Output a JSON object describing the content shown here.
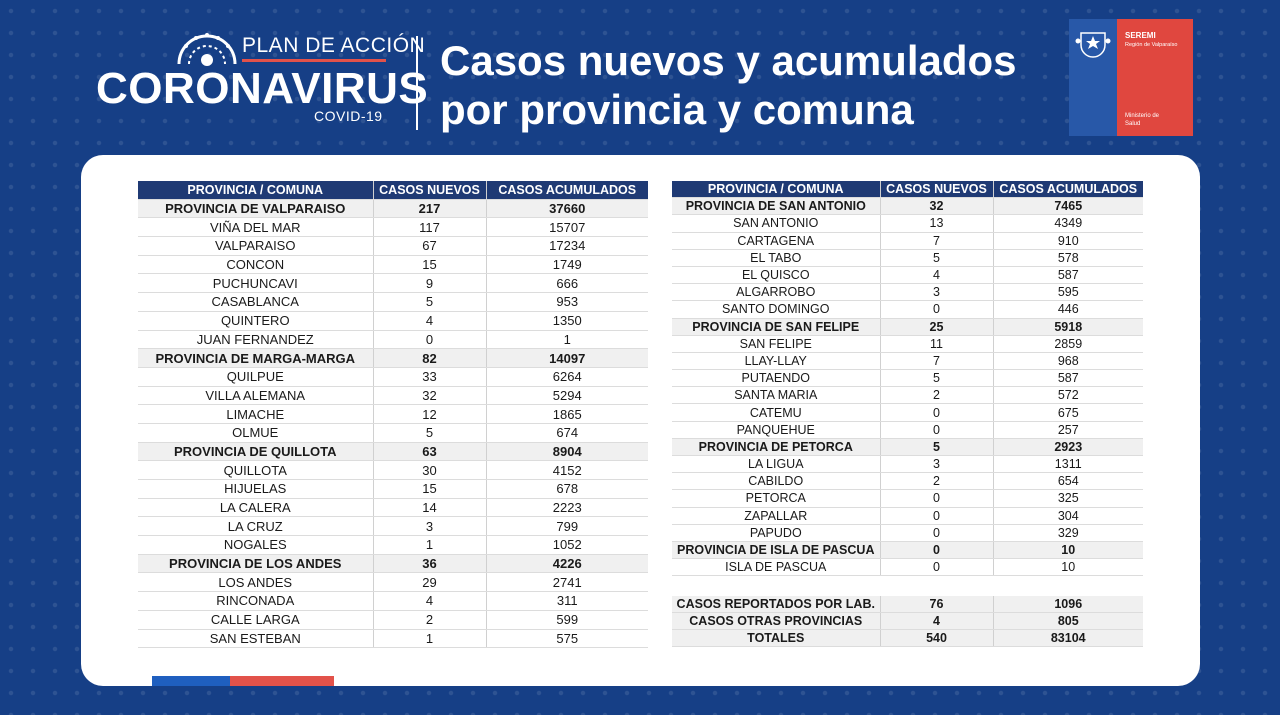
{
  "header": {
    "logo_line1": "PLAN DE ACCIÓN",
    "logo_line2": "CORONAVIRUS",
    "logo_line3": "COVID-19",
    "title_line1": "Casos nuevos y acumulados",
    "title_line2": "por provincia y comuna",
    "seremi_title": "SEREMI",
    "seremi_region": "Región de Valparaíso",
    "ministry_line1": "Ministerio de",
    "ministry_line2": "Salud"
  },
  "colors": {
    "background": "#163f86",
    "table_header": "#1f3a74",
    "accent_red": "#e2524a",
    "accent_blue": "#1f5fbf"
  },
  "columns": [
    "PROVINCIA / COMUNA",
    "CASOS NUEVOS",
    "CASOS ACUMULADOS"
  ],
  "left_table": [
    {
      "name": "PROVINCIA DE VALPARAISO",
      "new": "217",
      "total": "37660",
      "province": true
    },
    {
      "name": "VIÑA DEL MAR",
      "new": "117",
      "total": "15707"
    },
    {
      "name": "VALPARAISO",
      "new": "67",
      "total": "17234"
    },
    {
      "name": "CONCON",
      "new": "15",
      "total": "1749"
    },
    {
      "name": "PUCHUNCAVI",
      "new": "9",
      "total": "666"
    },
    {
      "name": "CASABLANCA",
      "new": "5",
      "total": "953"
    },
    {
      "name": "QUINTERO",
      "new": "4",
      "total": "1350"
    },
    {
      "name": "JUAN FERNANDEZ",
      "new": "0",
      "total": "1"
    },
    {
      "name": "PROVINCIA DE MARGA-MARGA",
      "new": "82",
      "total": "14097",
      "province": true
    },
    {
      "name": "QUILPUE",
      "new": "33",
      "total": "6264"
    },
    {
      "name": "VILLA ALEMANA",
      "new": "32",
      "total": "5294"
    },
    {
      "name": "LIMACHE",
      "new": "12",
      "total": "1865"
    },
    {
      "name": "OLMUE",
      "new": "5",
      "total": "674"
    },
    {
      "name": "PROVINCIA DE QUILLOTA",
      "new": "63",
      "total": "8904",
      "province": true
    },
    {
      "name": "QUILLOTA",
      "new": "30",
      "total": "4152"
    },
    {
      "name": "HIJUELAS",
      "new": "15",
      "total": "678"
    },
    {
      "name": "LA CALERA",
      "new": "14",
      "total": "2223"
    },
    {
      "name": "LA CRUZ",
      "new": "3",
      "total": "799"
    },
    {
      "name": "NOGALES",
      "new": "1",
      "total": "1052"
    },
    {
      "name": "PROVINCIA DE LOS ANDES",
      "new": "36",
      "total": "4226",
      "province": true
    },
    {
      "name": "LOS ANDES",
      "new": "29",
      "total": "2741"
    },
    {
      "name": "RINCONADA",
      "new": "4",
      "total": "311"
    },
    {
      "name": "CALLE LARGA",
      "new": "2",
      "total": "599"
    },
    {
      "name": "SAN ESTEBAN",
      "new": "1",
      "total": "575"
    }
  ],
  "right_table": [
    {
      "name": "PROVINCIA DE SAN ANTONIO",
      "new": "32",
      "total": "7465",
      "province": true
    },
    {
      "name": "SAN ANTONIO",
      "new": "13",
      "total": "4349"
    },
    {
      "name": "CARTAGENA",
      "new": "7",
      "total": "910"
    },
    {
      "name": "EL TABO",
      "new": "5",
      "total": "578"
    },
    {
      "name": "EL QUISCO",
      "new": "4",
      "total": "587"
    },
    {
      "name": "ALGARROBO",
      "new": "3",
      "total": "595"
    },
    {
      "name": "SANTO DOMINGO",
      "new": "0",
      "total": "446"
    },
    {
      "name": "PROVINCIA DE SAN FELIPE",
      "new": "25",
      "total": "5918",
      "province": true
    },
    {
      "name": "SAN FELIPE",
      "new": "11",
      "total": "2859"
    },
    {
      "name": "LLAY-LLAY",
      "new": "7",
      "total": "968"
    },
    {
      "name": "PUTAENDO",
      "new": "5",
      "total": "587"
    },
    {
      "name": "SANTA MARIA",
      "new": "2",
      "total": "572"
    },
    {
      "name": "CATEMU",
      "new": "0",
      "total": "675"
    },
    {
      "name": "PANQUEHUE",
      "new": "0",
      "total": "257"
    },
    {
      "name": "PROVINCIA DE PETORCA",
      "new": "5",
      "total": "2923",
      "province": true
    },
    {
      "name": "LA LIGUA",
      "new": "3",
      "total": "1311"
    },
    {
      "name": "CABILDO",
      "new": "2",
      "total": "654"
    },
    {
      "name": "PETORCA",
      "new": "0",
      "total": "325"
    },
    {
      "name": "ZAPALLAR",
      "new": "0",
      "total": "304"
    },
    {
      "name": "PAPUDO",
      "new": "0",
      "total": "329"
    },
    {
      "name": "PROVINCIA DE ISLA DE PASCUA",
      "new": "0",
      "total": "10",
      "province": true
    },
    {
      "name": "ISLA DE PASCUA",
      "new": "0",
      "total": "10"
    }
  ],
  "totals_table": [
    {
      "name": "CASOS REPORTADOS POR LAB.",
      "new": "76",
      "total": "1096"
    },
    {
      "name": "CASOS OTRAS PROVINCIAS",
      "new": "4",
      "total": "805"
    },
    {
      "name": "TOTALES",
      "new": "540",
      "total": "83104"
    }
  ]
}
